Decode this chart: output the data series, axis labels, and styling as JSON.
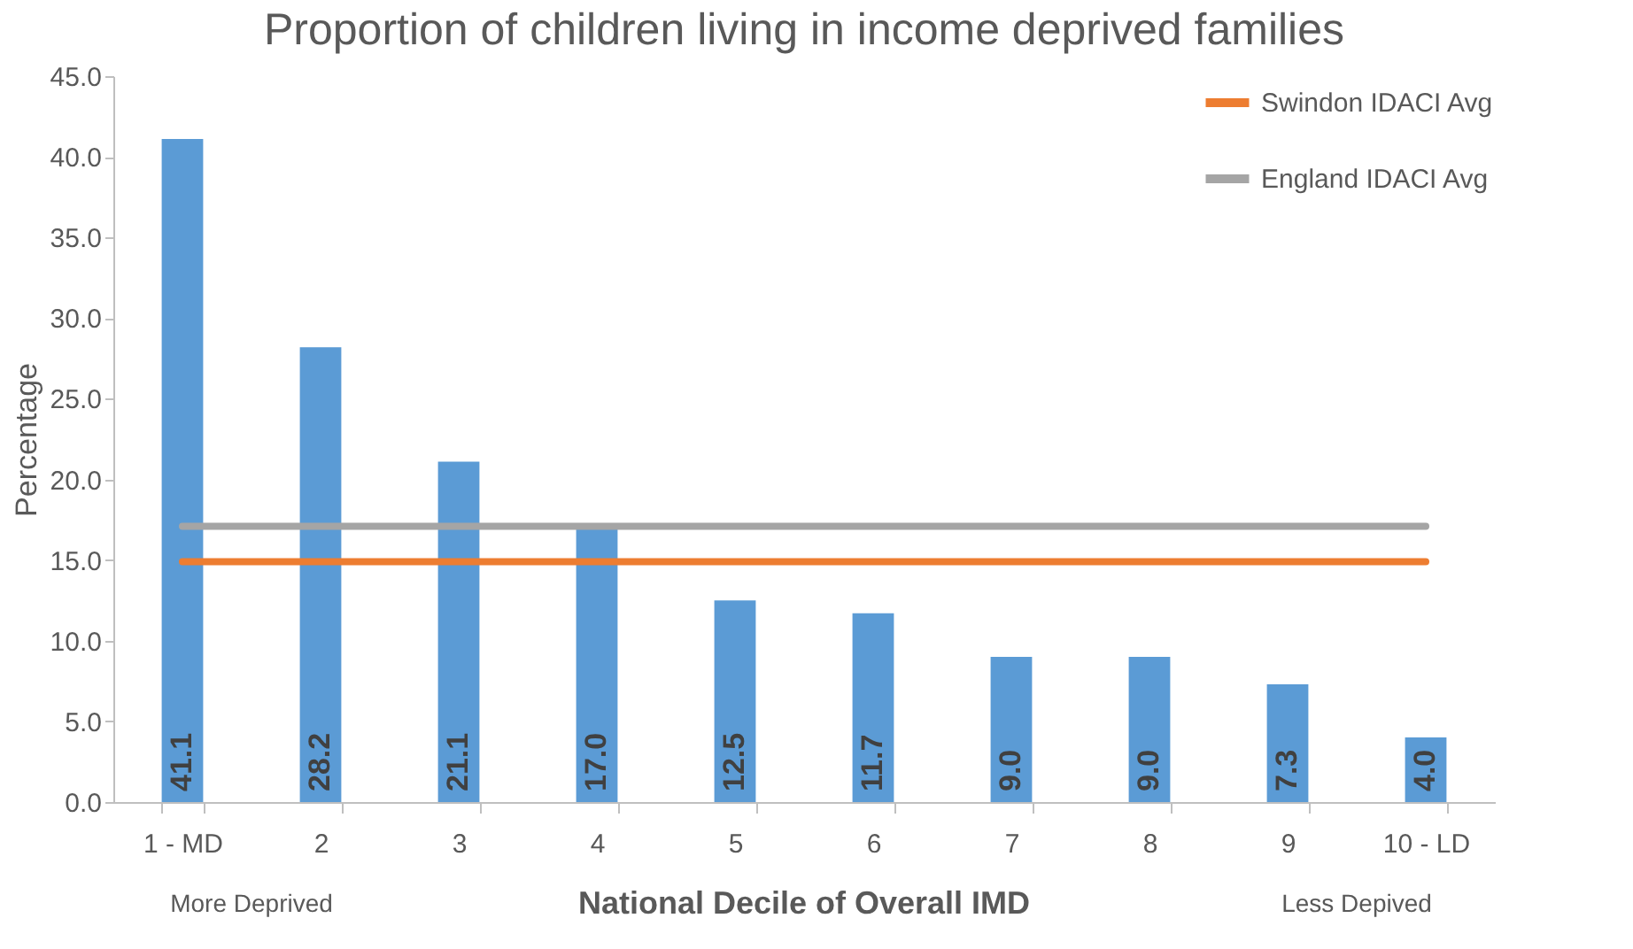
{
  "chart_data": {
    "type": "bar",
    "title": "Proportion of children living in income deprived families",
    "xlabel": "National Decile of Overall IMD",
    "ylabel": "Percentage",
    "categories": [
      "1 - MD",
      "2",
      "3",
      "4",
      "5",
      "6",
      "7",
      "8",
      "9",
      "10 - LD"
    ],
    "series": [
      {
        "color": "#5b9bd5",
        "values": [
          41.1,
          28.2,
          21.1,
          17.0,
          12.5,
          11.7,
          9.0,
          9.0,
          7.3,
          4.0
        ],
        "value_labels": [
          "41.1",
          "28.2",
          "21.1",
          "17.0",
          "12.5",
          "11.7",
          "9.0",
          "9.0",
          "7.3",
          "4.0"
        ]
      },
      {
        "type": "line",
        "name": "Swindon IDACI Avg",
        "color": "#ed7d31",
        "values": [
          14.9,
          14.9,
          14.9,
          14.9,
          14.9,
          14.9,
          14.9,
          14.9,
          14.9,
          14.9
        ]
      },
      {
        "type": "line",
        "name": "England IDACI Avg",
        "color": "#a5a5a5",
        "values": [
          17.1,
          17.1,
          17.1,
          17.1,
          17.1,
          17.1,
          17.1,
          17.1,
          17.1,
          17.1
        ]
      }
    ],
    "ylim": [
      0,
      45
    ],
    "yticks": [
      {
        "value": 0,
        "label": "0.0"
      },
      {
        "value": 5,
        "label": "5.0"
      },
      {
        "value": 10,
        "label": "10.0"
      },
      {
        "value": 15,
        "label": "15.0"
      },
      {
        "value": 20,
        "label": "20.0"
      },
      {
        "value": 25,
        "label": "25.0"
      },
      {
        "value": 30,
        "label": "30.0"
      },
      {
        "value": 35,
        "label": "35.0"
      },
      {
        "value": 40,
        "label": "40.0"
      },
      {
        "value": 45,
        "label": "45.0"
      }
    ],
    "grid": false,
    "legend": "top right",
    "line_style": "solid",
    "marker": "none",
    "annotations": [
      "More Deprived",
      "Less Depived"
    ]
  }
}
